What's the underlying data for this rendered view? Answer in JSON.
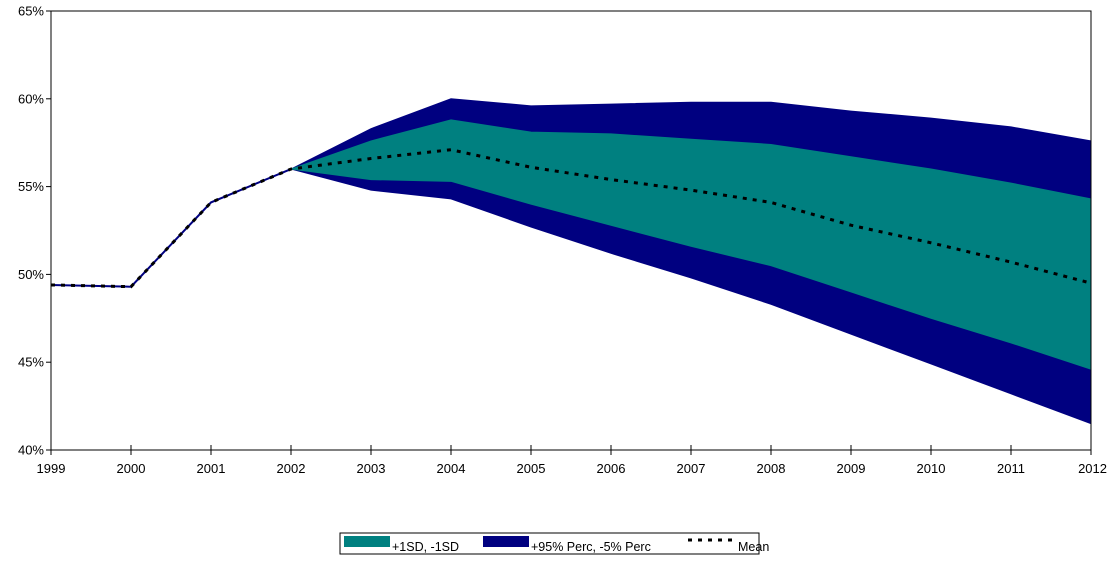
{
  "chart_data": {
    "type": "area",
    "x": [
      "1999",
      "2000",
      "2001",
      "2002",
      "2003",
      "2004",
      "2005",
      "2006",
      "2007",
      "2008",
      "2009",
      "2010",
      "2011",
      "2012"
    ],
    "ylim": [
      40,
      65
    ],
    "y_ticks": [
      "40%",
      "45%",
      "50%",
      "55%",
      "60%",
      "65%"
    ],
    "y_tick_values": [
      40,
      45,
      50,
      55,
      60,
      65
    ],
    "grid": false,
    "legend_position": "bottom",
    "series": [
      {
        "name": "+95% Perc, -5% Perc",
        "kind": "band",
        "color": "#000080",
        "upper": [
          49.4,
          49.3,
          54.1,
          56.0,
          58.3,
          60.0,
          59.6,
          59.7,
          59.8,
          59.8,
          59.3,
          58.9,
          58.4,
          57.6
        ],
        "lower": [
          49.4,
          49.3,
          54.1,
          56.0,
          54.8,
          54.3,
          52.7,
          51.2,
          49.8,
          48.3,
          46.6,
          44.9,
          43.2,
          41.5
        ]
      },
      {
        "name": "+1SD, -1SD",
        "kind": "band",
        "color": "#008080",
        "upper": [
          49.4,
          49.3,
          54.1,
          56.0,
          57.6,
          58.8,
          58.1,
          58.0,
          57.7,
          57.4,
          56.7,
          56.0,
          55.2,
          54.3
        ],
        "lower": [
          49.4,
          49.3,
          54.1,
          56.0,
          55.4,
          55.3,
          54.0,
          52.8,
          51.6,
          50.5,
          49.0,
          47.5,
          46.1,
          44.6
        ]
      },
      {
        "name": "Mean",
        "kind": "line",
        "color": "#000000",
        "dashed": true,
        "values": [
          49.4,
          49.3,
          54.1,
          56.0,
          56.6,
          57.1,
          56.1,
          55.4,
          54.8,
          54.1,
          52.8,
          51.8,
          50.7,
          49.5
        ]
      }
    ]
  }
}
